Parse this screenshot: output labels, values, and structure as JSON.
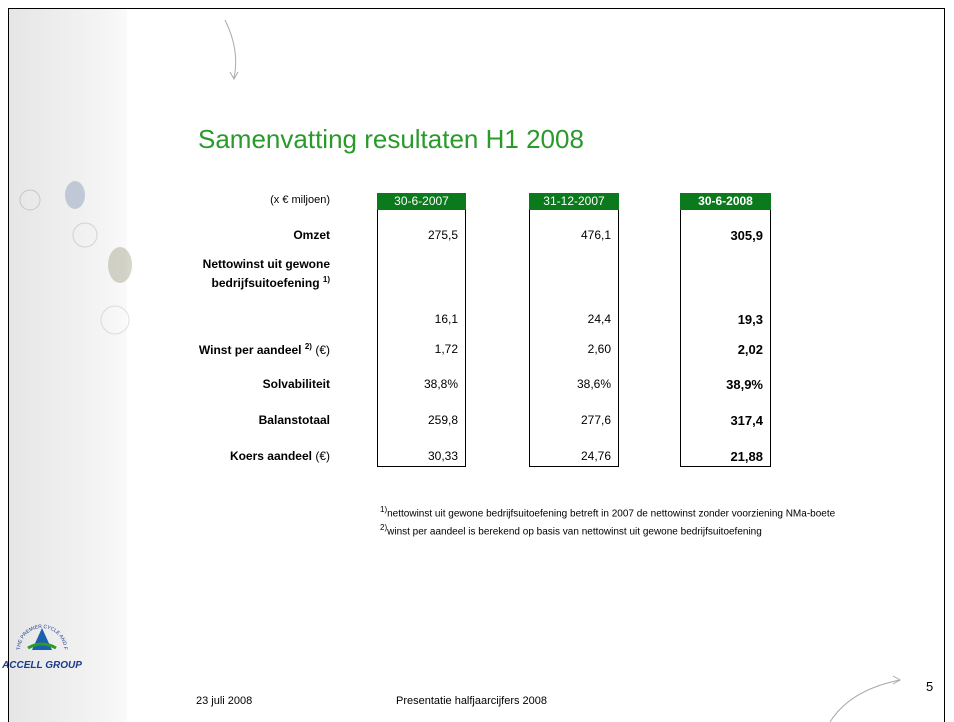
{
  "header": {
    "title": "Samenvatting resultaten H1 2008"
  },
  "table": {
    "unit_label": "(x € miljoen)",
    "columns": [
      "30-6-2007",
      "31-12-2007",
      "30-6-2008"
    ],
    "rows": [
      {
        "label": "Omzet",
        "values": [
          "275,5",
          "476,1",
          "305,9"
        ]
      },
      {
        "label_lines": [
          "Nettowinst uit gewone",
          "bedrijfsuitoefening"
        ],
        "marker": "1)",
        "values": [
          "16,1",
          "24,4",
          "19,3"
        ]
      },
      {
        "label": "Winst per aandeel",
        "marker": "2)",
        "unit": "(€)",
        "values": [
          "1,72",
          "2,60",
          "2,02"
        ]
      },
      {
        "label": "Solvabiliteit",
        "values": [
          "38,8%",
          "38,6%",
          "38,9%"
        ]
      },
      {
        "label": "Balanstotaal",
        "values": [
          "259,8",
          "277,6",
          "317,4"
        ]
      },
      {
        "label": "Koers aandeel",
        "unit": "(€)",
        "values": [
          "30,33",
          "24,76",
          "21,88"
        ]
      }
    ]
  },
  "footnotes": [
    {
      "marker": "1)",
      "text": "nettowinst uit gewone bedrijfsuitoefening betreft in 2007 de nettowinst zonder voorziening NMa-boete"
    },
    {
      "marker": "2)",
      "text": "winst per aandeel is berekend op basis van nettowinst uit gewone bedrijfsuitoefening"
    }
  ],
  "logo": {
    "name": "ACCELL GROUP",
    "tagline": "THE PREMIER CYCLE AND FITNESS GROUP"
  },
  "footer": {
    "date": "23 juli 2008",
    "presentation": "Presentatie halfjaarcijfers 2008",
    "page_number": "5"
  }
}
